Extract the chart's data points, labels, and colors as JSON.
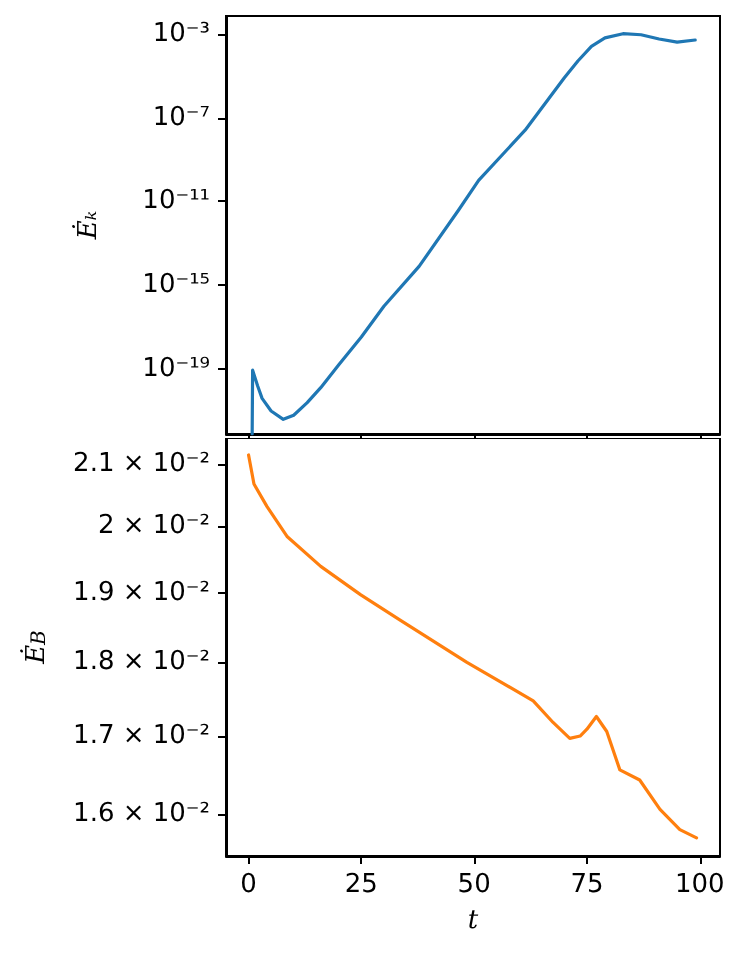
{
  "chart_data": [
    {
      "type": "line",
      "ylabel": "Ėₖ",
      "tick_labels": "y",
      "log": "y",
      "grid": false,
      "xlim": [
        -5,
        104.5
      ],
      "xticks": [
        0,
        25,
        50,
        75,
        100
      ],
      "ylim": [
        8e-23,
        0.007
      ],
      "yticks": [
        {
          "value": 1e-19,
          "label": "10⁻¹⁹"
        },
        {
          "value": 1e-15,
          "label": "10⁻¹⁵"
        },
        {
          "value": 1e-11,
          "label": "10⁻¹¹"
        },
        {
          "value": 1e-07,
          "label": "10⁻⁷"
        },
        {
          "value": 0.001,
          "label": "10⁻³"
        }
      ],
      "series": [
        {
          "color": "#1f77b4",
          "x": [
            0.8,
            0.9,
            2,
            3,
            5,
            7.7,
            10,
            13,
            16,
            20,
            25,
            30,
            37.8,
            46.6,
            51,
            61.3,
            70,
            73,
            76,
            79,
            83,
            87,
            91,
            95,
            99
          ],
          "values": [
            8e-23,
            8.9e-20,
            1.6e-20,
            4e-21,
            1e-21,
            4e-22,
            6.3e-22,
            2.5e-21,
            1.3e-20,
            1.6e-19,
            3.4e-18,
            1e-16,
            7.9e-15,
            4e-12,
            1e-10,
            2.5e-08,
            7.9e-06,
            5e-05,
            0.00025,
            0.00063,
            0.001,
            0.00089,
            0.00056,
            0.0004,
            0.0005
          ]
        }
      ]
    },
    {
      "type": "line",
      "xlabel": "t",
      "ylabel": "Ė$_{B}$",
      "log": "y",
      "grid": false,
      "xlim": [
        -5,
        104.5
      ],
      "xticks": [
        0,
        25,
        50,
        75,
        100
      ],
      "ylim": [
        0.01549,
        0.02142
      ],
      "yticks": [
        {
          "value": 0.016,
          "label": "1.6 × 10⁻²"
        },
        {
          "value": 0.017,
          "label": "1.7 × 10⁻²"
        },
        {
          "value": 0.018,
          "label": "1.8 × 10⁻²"
        },
        {
          "value": 0.019,
          "label": "1.9 × 10⁻²"
        },
        {
          "value": 0.02,
          "label": "2 × 10⁻²"
        },
        {
          "value": 0.021,
          "label": "2.1 × 10⁻²"
        }
      ],
      "series": [
        {
          "color": "#ff7f0e",
          "x": [
            0,
            1.2,
            4.1,
            8.6,
            16,
            24.8,
            33.6,
            48.4,
            63.1,
            67.5,
            71.2,
            73.5,
            75,
            77.1,
            79.4,
            82.3,
            86.7,
            91.2,
            95.6,
            99.3
          ],
          "values": [
            0.02114,
            0.02067,
            0.02031,
            0.01984,
            0.01939,
            0.01897,
            0.0186,
            0.018,
            0.01747,
            0.01718,
            0.01697,
            0.017,
            0.01709,
            0.01726,
            0.01706,
            0.01656,
            0.01643,
            0.01606,
            0.01581,
            0.01571
          ]
        }
      ]
    }
  ]
}
